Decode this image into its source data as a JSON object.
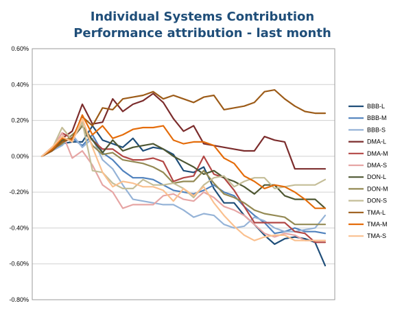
{
  "chart_data": {
    "type": "line",
    "title": "Individual Systems Contribution",
    "subtitle": "Performance attribution - last month",
    "xlabel": "",
    "ylabel": "",
    "ylim": [
      -0.8,
      0.6
    ],
    "yticks": [
      0.6,
      0.4,
      0.2,
      0.0,
      -0.2,
      -0.4,
      -0.6,
      -0.8
    ],
    "ytick_labels": [
      "0.60%",
      "0.40%",
      "0.20%",
      "0.00%",
      "-0.20%",
      "-0.40%",
      "-0.60%",
      "-0.80%"
    ],
    "x": [
      1,
      2,
      3,
      4,
      5,
      6,
      7,
      8,
      9,
      10,
      11,
      12,
      13,
      14,
      15,
      16,
      17,
      18,
      19,
      20,
      21,
      22,
      23,
      24,
      25,
      26,
      27,
      28,
      29
    ],
    "grid": "horizontal",
    "legend_position": "right",
    "series": [
      {
        "name": "BBB-L",
        "color": "#1f4e79",
        "values": [
          0,
          0.03,
          0.07,
          0.08,
          0.08,
          0.17,
          0.09,
          0.07,
          0.05,
          0.1,
          0.03,
          0.05,
          0.04,
          0.01,
          -0.08,
          -0.09,
          -0.06,
          -0.18,
          -0.26,
          -0.26,
          -0.33,
          -0.38,
          -0.44,
          -0.49,
          -0.46,
          -0.45,
          -0.46,
          -0.48,
          -0.61
        ]
      },
      {
        "name": "BBB-M",
        "color": "#4f81bd",
        "values": [
          0,
          0.04,
          0.08,
          0.1,
          0.06,
          0.12,
          0.02,
          -0.02,
          -0.08,
          -0.12,
          -0.12,
          -0.13,
          -0.16,
          -0.19,
          -0.2,
          -0.21,
          -0.19,
          -0.16,
          -0.2,
          -0.22,
          -0.28,
          -0.33,
          -0.37,
          -0.43,
          -0.42,
          -0.4,
          -0.42,
          -0.42,
          -0.43
        ]
      },
      {
        "name": "BBB-S",
        "color": "#95b3d7",
        "values": [
          0,
          0.03,
          0.06,
          0.12,
          0.05,
          0.1,
          -0.02,
          -0.07,
          -0.16,
          -0.24,
          -0.25,
          -0.26,
          -0.27,
          -0.27,
          -0.3,
          -0.34,
          -0.32,
          -0.33,
          -0.38,
          -0.4,
          -0.39,
          -0.34,
          -0.36,
          -0.4,
          -0.42,
          -0.42,
          -0.41,
          -0.4,
          -0.33
        ]
      },
      {
        "name": "DMA-L",
        "color": "#7b2c2c",
        "values": [
          0,
          0.05,
          0.1,
          0.14,
          0.29,
          0.18,
          0.19,
          0.32,
          0.25,
          0.29,
          0.31,
          0.35,
          0.3,
          0.21,
          0.14,
          0.17,
          0.07,
          0.06,
          0.05,
          0.04,
          0.03,
          0.03,
          0.11,
          0.09,
          0.08,
          -0.07,
          -0.07,
          -0.07,
          -0.07
        ]
      },
      {
        "name": "DMA-M",
        "color": "#b24644",
        "values": [
          0,
          0.04,
          0.13,
          0.1,
          0.17,
          0.09,
          0.04,
          0.04,
          0.0,
          -0.02,
          -0.02,
          -0.01,
          -0.03,
          -0.14,
          -0.12,
          -0.11,
          0.0,
          -0.1,
          -0.12,
          -0.19,
          -0.28,
          -0.37,
          -0.37,
          -0.37,
          -0.37,
          -0.42,
          -0.43,
          -0.48,
          -0.48
        ]
      },
      {
        "name": "DMA-S",
        "color": "#e6a5a4",
        "values": [
          0,
          0.04,
          0.13,
          -0.01,
          0.03,
          -0.05,
          -0.16,
          -0.2,
          -0.29,
          -0.27,
          -0.27,
          -0.27,
          -0.22,
          -0.21,
          -0.24,
          -0.25,
          -0.2,
          -0.23,
          -0.28,
          -0.3,
          -0.33,
          -0.38,
          -0.43,
          -0.45,
          -0.43,
          -0.44,
          -0.47,
          -0.47,
          -0.47
        ]
      },
      {
        "name": "DON-L",
        "color": "#4e5732",
        "values": [
          0,
          0.03,
          0.09,
          0.1,
          0.17,
          0.09,
          0.02,
          0.09,
          0.03,
          0.05,
          0.06,
          0.07,
          0.04,
          0.0,
          -0.03,
          -0.06,
          -0.1,
          -0.08,
          -0.12,
          -0.14,
          -0.17,
          -0.21,
          -0.16,
          -0.16,
          -0.22,
          -0.24,
          -0.24,
          -0.24,
          -0.29
        ]
      },
      {
        "name": "DON-M",
        "color": "#938953",
        "values": [
          0,
          0.04,
          0.07,
          0.12,
          0.17,
          0.06,
          0.01,
          0.02,
          -0.02,
          -0.03,
          -0.04,
          -0.06,
          -0.09,
          -0.15,
          -0.14,
          -0.14,
          -0.08,
          -0.15,
          -0.21,
          -0.23,
          -0.26,
          -0.3,
          -0.32,
          -0.33,
          -0.34,
          -0.38,
          -0.38,
          -0.38,
          -0.38
        ]
      },
      {
        "name": "DON-S",
        "color": "#c4bd97",
        "values": [
          0,
          0.04,
          0.16,
          0.09,
          0.19,
          -0.08,
          -0.09,
          -0.15,
          -0.18,
          -0.18,
          -0.13,
          -0.16,
          -0.16,
          -0.15,
          -0.18,
          -0.23,
          -0.16,
          -0.12,
          -0.11,
          -0.17,
          -0.14,
          -0.12,
          -0.12,
          -0.18,
          -0.17,
          -0.16,
          -0.16,
          -0.16,
          -0.13
        ]
      },
      {
        "name": "TMA-L",
        "color": "#9c5b18",
        "values": [
          0,
          0.03,
          0.08,
          0.1,
          0.22,
          0.17,
          0.27,
          0.26,
          0.32,
          0.33,
          0.34,
          0.36,
          0.32,
          0.34,
          0.32,
          0.3,
          0.33,
          0.34,
          0.26,
          0.27,
          0.28,
          0.3,
          0.36,
          0.37,
          0.32,
          0.28,
          0.25,
          0.24,
          0.24
        ]
      },
      {
        "name": "TMA-M",
        "color": "#e46c0a",
        "values": [
          0,
          0.04,
          0.1,
          0.09,
          0.23,
          0.12,
          0.17,
          0.1,
          0.12,
          0.15,
          0.16,
          0.16,
          0.17,
          0.09,
          0.07,
          0.08,
          0.08,
          0.06,
          -0.01,
          -0.04,
          -0.11,
          -0.14,
          -0.18,
          -0.16,
          -0.17,
          -0.2,
          -0.24,
          -0.29,
          -0.29
        ]
      },
      {
        "name": "TMA-S",
        "color": "#fac08f",
        "values": [
          0,
          0.05,
          0.11,
          0.08,
          0.21,
          0.05,
          -0.09,
          -0.17,
          -0.14,
          -0.15,
          -0.17,
          -0.17,
          -0.19,
          -0.25,
          -0.18,
          -0.22,
          -0.17,
          -0.26,
          -0.33,
          -0.39,
          -0.44,
          -0.47,
          -0.45,
          -0.44,
          -0.44,
          -0.47,
          -0.47,
          -0.47,
          -0.47
        ]
      }
    ]
  }
}
